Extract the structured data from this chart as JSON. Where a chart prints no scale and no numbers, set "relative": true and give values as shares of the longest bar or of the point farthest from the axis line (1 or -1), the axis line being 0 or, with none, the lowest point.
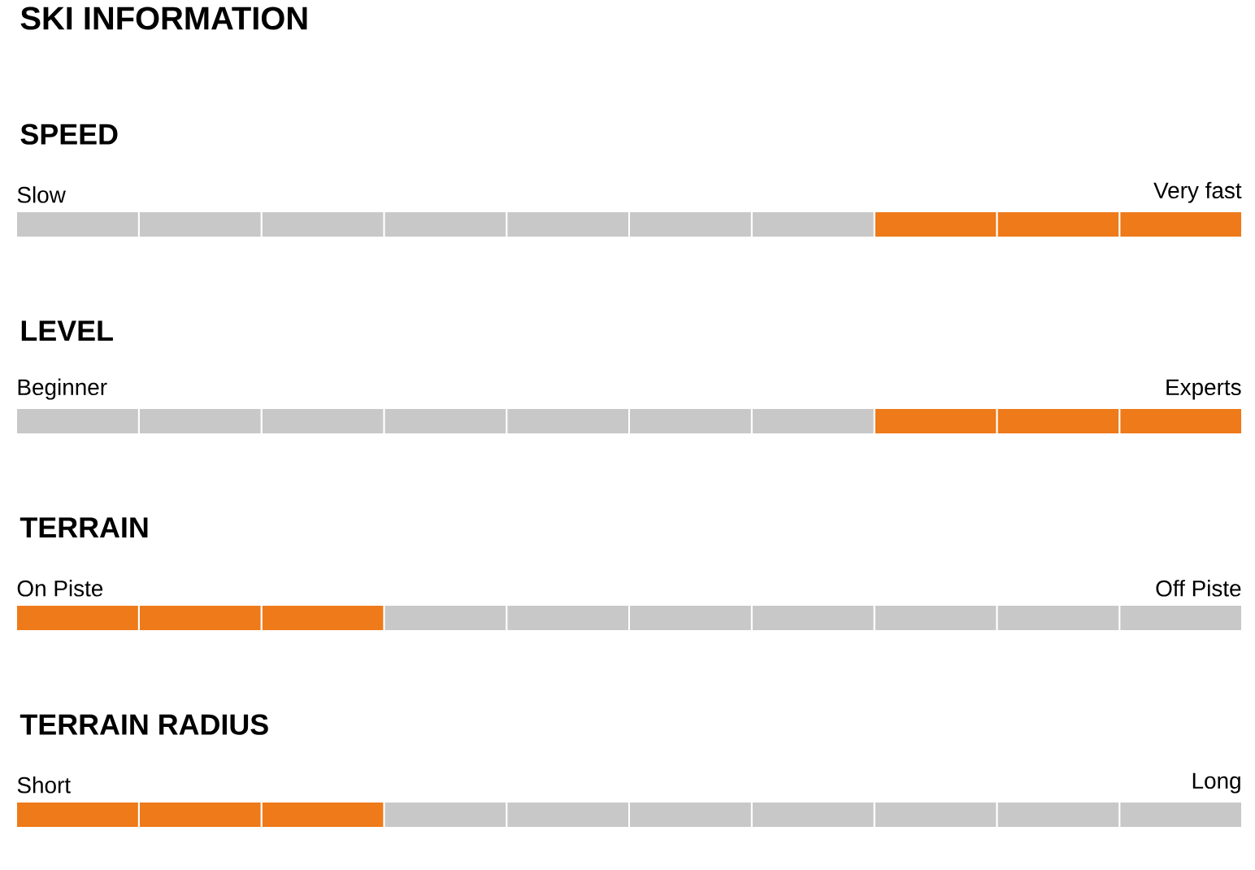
{
  "chart_data": [
    {
      "type": "other",
      "title": "SKI INFORMATION"
    },
    {
      "type": "bar",
      "title": "SPEED",
      "annotations": [
        "Slow",
        "Very fast"
      ],
      "orientation": "horizontal",
      "stacked": true,
      "relative": true,
      "categories": [
        null
      ],
      "series": [
        {
          "color": "#c8c8c8",
          "values": [
            0.1
          ]
        },
        {
          "color": "#c8c8c8",
          "values": [
            0.1
          ]
        },
        {
          "color": "#c8c8c8",
          "values": [
            0.1
          ]
        },
        {
          "color": "#c8c8c8",
          "values": [
            0.1
          ]
        },
        {
          "color": "#c8c8c8",
          "values": [
            0.1
          ]
        },
        {
          "color": "#c8c8c8",
          "values": [
            0.1
          ]
        },
        {
          "color": "#c8c8c8",
          "values": [
            0.1
          ]
        },
        {
          "color": "#ee7a1a",
          "values": [
            0.1
          ]
        },
        {
          "color": "#ee7a1a",
          "values": [
            0.1
          ]
        },
        {
          "color": "#ee7a1a",
          "values": [
            0.1
          ]
        }
      ]
    },
    {
      "type": "bar",
      "title": "LEVEL",
      "annotations": [
        "Beginner",
        "Experts"
      ],
      "orientation": "horizontal",
      "stacked": true,
      "relative": true,
      "categories": [
        null
      ],
      "series": [
        {
          "color": "#c8c8c8",
          "values": [
            0.1
          ]
        },
        {
          "color": "#c8c8c8",
          "values": [
            0.1
          ]
        },
        {
          "color": "#c8c8c8",
          "values": [
            0.1
          ]
        },
        {
          "color": "#c8c8c8",
          "values": [
            0.1
          ]
        },
        {
          "color": "#c8c8c8",
          "values": [
            0.1
          ]
        },
        {
          "color": "#c8c8c8",
          "values": [
            0.1
          ]
        },
        {
          "color": "#c8c8c8",
          "values": [
            0.1
          ]
        },
        {
          "color": "#ee7a1a",
          "values": [
            0.1
          ]
        },
        {
          "color": "#ee7a1a",
          "values": [
            0.1
          ]
        },
        {
          "color": "#ee7a1a",
          "values": [
            0.1
          ]
        }
      ]
    },
    {
      "type": "bar",
      "title": "TERRAIN",
      "annotations": [
        "On Piste",
        "Off Piste"
      ],
      "orientation": "horizontal",
      "stacked": true,
      "relative": true,
      "categories": [
        null
      ],
      "series": [
        {
          "color": "#ee7a1a",
          "values": [
            0.1
          ]
        },
        {
          "color": "#ee7a1a",
          "values": [
            0.1
          ]
        },
        {
          "color": "#ee7a1a",
          "values": [
            0.1
          ]
        },
        {
          "color": "#c8c8c8",
          "values": [
            0.1
          ]
        },
        {
          "color": "#c8c8c8",
          "values": [
            0.1
          ]
        },
        {
          "color": "#c8c8c8",
          "values": [
            0.1
          ]
        },
        {
          "color": "#c8c8c8",
          "values": [
            0.1
          ]
        },
        {
          "color": "#c8c8c8",
          "values": [
            0.1
          ]
        },
        {
          "color": "#c8c8c8",
          "values": [
            0.1
          ]
        },
        {
          "color": "#c8c8c8",
          "values": [
            0.1
          ]
        }
      ]
    },
    {
      "type": "bar",
      "title": "TERRAIN RADIUS",
      "annotations": [
        "Short",
        "Long"
      ],
      "orientation": "horizontal",
      "stacked": true,
      "relative": true,
      "categories": [
        null
      ],
      "series": [
        {
          "color": "#ee7a1a",
          "values": [
            0.1
          ]
        },
        {
          "color": "#ee7a1a",
          "values": [
            0.1
          ]
        },
        {
          "color": "#ee7a1a",
          "values": [
            0.1
          ]
        },
        {
          "color": "#c8c8c8",
          "values": [
            0.1
          ]
        },
        {
          "color": "#c8c8c8",
          "values": [
            0.1
          ]
        },
        {
          "color": "#c8c8c8",
          "values": [
            0.1
          ]
        },
        {
          "color": "#c8c8c8",
          "values": [
            0.1
          ]
        },
        {
          "color": "#c8c8c8",
          "values": [
            0.1
          ]
        },
        {
          "color": "#c8c8c8",
          "values": [
            0.1
          ]
        },
        {
          "color": "#c8c8c8",
          "values": [
            0.1
          ]
        }
      ]
    }
  ]
}
